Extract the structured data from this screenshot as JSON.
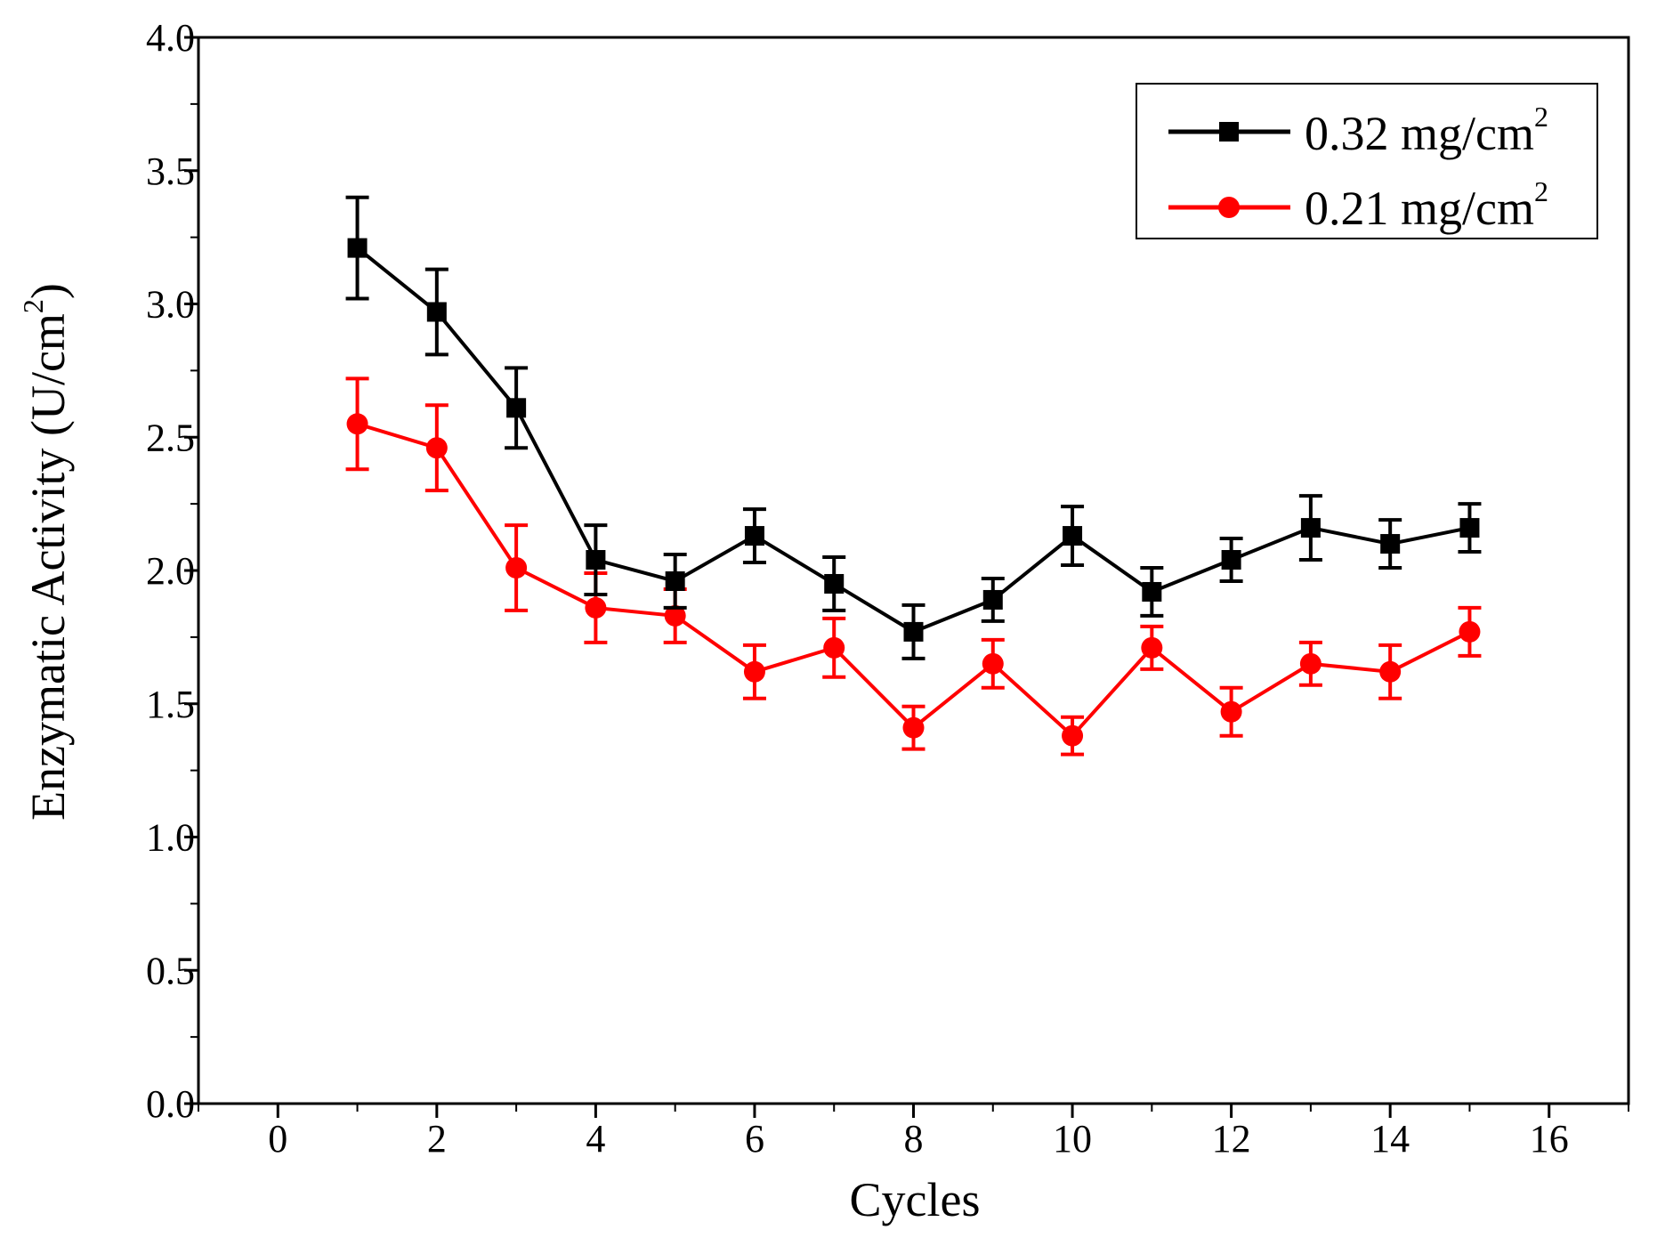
{
  "chart_data": {
    "type": "line",
    "title": "",
    "xlabel": "Cycles",
    "ylabel": {
      "base": "Enzymatic Activity (U/cm",
      "superscript": "2",
      "closing": ")"
    },
    "xlim": [
      -1,
      17
    ],
    "ylim": [
      0.0,
      4.0
    ],
    "xticks": [
      0,
      2,
      4,
      6,
      8,
      10,
      12,
      14,
      16
    ],
    "xtick_labels": [
      "0",
      "2",
      "4",
      "6",
      "8",
      "10",
      "12",
      "14",
      "16"
    ],
    "yticks": [
      0.0,
      0.5,
      1.0,
      1.5,
      2.0,
      2.5,
      3.0,
      3.5,
      4.0
    ],
    "ytick_labels": [
      "0.0",
      "0.5",
      "1.0",
      "1.5",
      "2.0",
      "2.5",
      "3.0",
      "3.5",
      "4.0"
    ],
    "legend_position": "top-right",
    "series": [
      {
        "name": "0.32 mg/cm2",
        "label_base": "0.32 mg/cm",
        "label_sup": "2",
        "color": "#000000",
        "marker": "square",
        "x": [
          1,
          2,
          3,
          4,
          5,
          6,
          7,
          8,
          9,
          10,
          11,
          12,
          13,
          14,
          15
        ],
        "y": [
          3.21,
          2.97,
          2.61,
          2.04,
          1.96,
          2.13,
          1.95,
          1.77,
          1.89,
          2.13,
          1.92,
          2.04,
          2.16,
          2.1,
          2.16
        ],
        "error": [
          0.19,
          0.16,
          0.15,
          0.13,
          0.1,
          0.1,
          0.1,
          0.1,
          0.08,
          0.11,
          0.09,
          0.08,
          0.12,
          0.09,
          0.09
        ]
      },
      {
        "name": "0.21 mg/cm2",
        "label_base": "0.21 mg/cm",
        "label_sup": "2",
        "color": "#ff0000",
        "marker": "circle",
        "x": [
          1,
          2,
          3,
          4,
          5,
          6,
          7,
          8,
          9,
          10,
          11,
          12,
          13,
          14,
          15
        ],
        "y": [
          2.55,
          2.46,
          2.01,
          1.86,
          1.83,
          1.62,
          1.71,
          1.41,
          1.65,
          1.38,
          1.71,
          1.47,
          1.65,
          1.62,
          1.77
        ],
        "error": [
          0.17,
          0.16,
          0.16,
          0.13,
          0.1,
          0.1,
          0.11,
          0.08,
          0.09,
          0.07,
          0.08,
          0.09,
          0.08,
          0.1,
          0.09
        ]
      }
    ]
  }
}
